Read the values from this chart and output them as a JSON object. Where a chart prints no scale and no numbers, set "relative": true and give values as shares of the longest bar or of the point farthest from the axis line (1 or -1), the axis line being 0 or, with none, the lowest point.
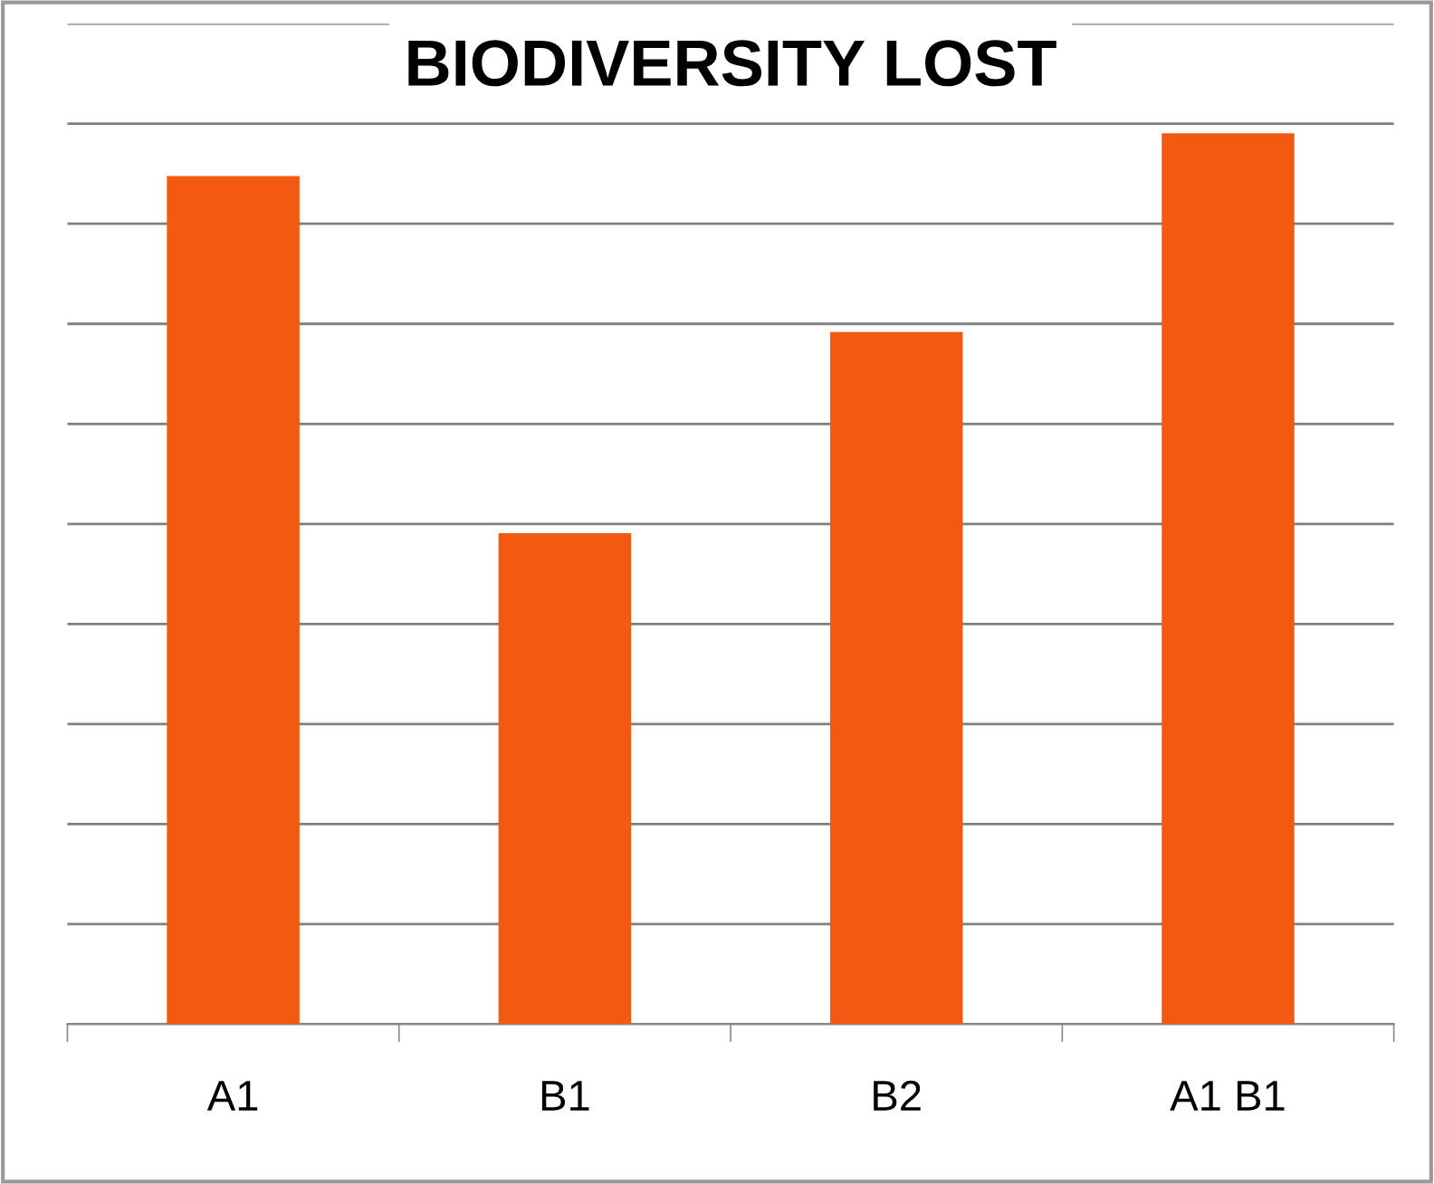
{
  "chart_data": {
    "type": "bar",
    "title": "BIODIVERSITY LOST",
    "categories": [
      "A1",
      "B1",
      "B2",
      "A1 B1"
    ],
    "values": [
      0.952,
      0.551,
      0.777,
      1
    ],
    "relative": true,
    "color": "#f25a12",
    "grid": "y"
  }
}
